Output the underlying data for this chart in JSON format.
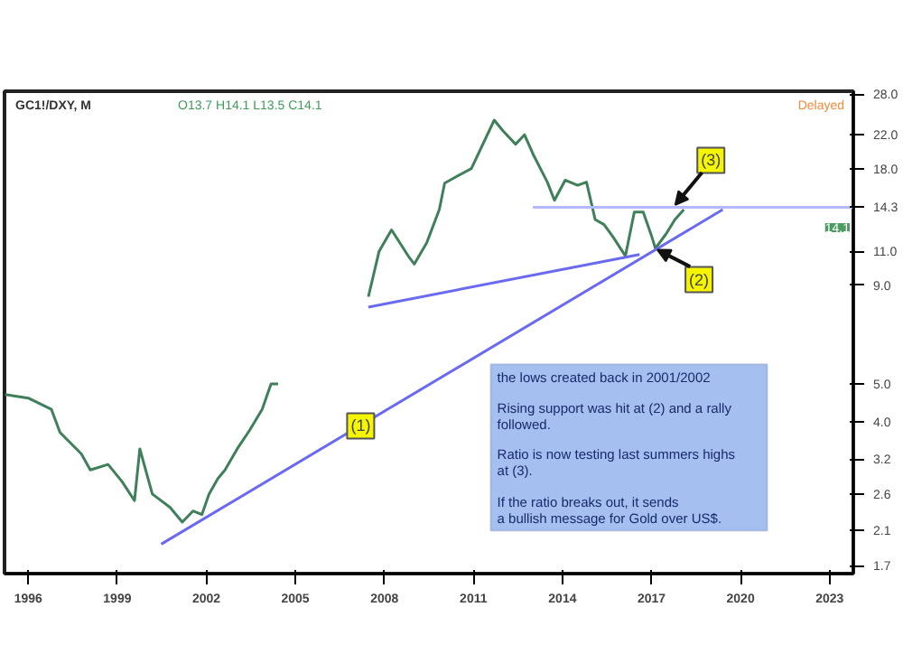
{
  "chart_data": {
    "type": "line",
    "title": "GC1!/DXY, M",
    "subtitle": "O13.7 H14.1 L13.5 C14.1",
    "log": "y",
    "grid": false,
    "line_style": "solid",
    "marker": "none",
    "xlim": [
      1995.2,
      2023.8
    ],
    "ylim": [
      1.62,
      28.5
    ],
    "xticks": [
      1996,
      1999,
      2002,
      2005,
      2008,
      2011,
      2014,
      2017,
      2020,
      2023
    ],
    "yticks": [
      {
        "value": 28,
        "label": "28.0"
      },
      {
        "value": 22,
        "label": "22.0"
      },
      {
        "value": 18,
        "label": "18.0"
      },
      {
        "value": 14.3,
        "label": "14.3"
      },
      {
        "value": 11,
        "label": "11.0"
      },
      {
        "value": 9,
        "label": "9.0"
      },
      {
        "value": 5,
        "label": "5.0"
      },
      {
        "value": 4,
        "label": "4.0"
      },
      {
        "value": 3.2,
        "label": "3.2"
      },
      {
        "value": 2.6,
        "label": "2.6"
      },
      {
        "value": 2.1,
        "label": "2.1"
      },
      {
        "value": 1.7,
        "label": "1.7"
      }
    ],
    "series": [
      {
        "color": "#3f7f5a",
        "x": [
          1995.22,
          1996.0,
          1996.78,
          1997.07,
          1997.79,
          1998.09,
          1998.69,
          1999.16,
          1999.58,
          1999.76,
          2000.18,
          2000.78,
          2001.19,
          2001.55,
          2001.85,
          2002.09,
          2002.39,
          2002.63,
          2003.04,
          2003.46,
          2003.88,
          2004.18,
          2004.42,
          2005.5,
          2007.46,
          2007.82,
          2008.24,
          2008.84,
          2009.01,
          2009.43,
          2009.85,
          2010.03,
          2010.33,
          2010.93,
          2011.7,
          2012.0,
          2012.42,
          2012.72,
          2013.01,
          2013.49,
          2013.73,
          2014.09,
          2014.51,
          2014.81,
          2015.1,
          2015.4,
          2015.7,
          2016.12,
          2016.42,
          2016.72,
          2017.01,
          2017.13,
          2017.49,
          2017.79,
          2018.09
        ],
        "values": [
          4.7,
          4.6,
          4.3,
          3.75,
          3.3,
          3.0,
          3.1,
          2.8,
          2.5,
          3.4,
          2.6,
          2.4,
          2.2,
          2.35,
          2.3,
          2.6,
          2.85,
          3.0,
          3.4,
          3.8,
          4.3,
          5.0,
          5.0,
          null,
          8.4,
          11.0,
          12.5,
          10.6,
          10.2,
          11.6,
          14.1,
          16.5,
          17,
          18,
          24,
          22.5,
          20.8,
          22,
          19.6,
          16.6,
          14.9,
          16.8,
          16.3,
          16.6,
          13.3,
          12.9,
          12.0,
          10.7,
          13.9,
          13.9,
          12.0,
          11.2,
          12.2,
          13.3,
          14.1
        ]
      },
      {
        "type": "line",
        "color": "#6a6af0",
        "x": [
          2000.48,
          2019.4
        ],
        "values": [
          1.93,
          14.1
        ]
      },
      {
        "type": "line",
        "color": "#6a6af0",
        "x": [
          2007.46,
          2016.6
        ],
        "values": [
          7.9,
          10.8
        ]
      },
      {
        "type": "line",
        "color": "#b4b8ff",
        "x": [
          2013.0,
          2023.8
        ],
        "values": [
          14.3,
          14.3
        ]
      }
    ],
    "annotations": [
      "Delayed",
      "the lows created back in 2001/2002",
      "Rising support was hit at (2) and a rally\nfollowed.",
      "Ratio is now testing last summers highs\nat (3).",
      "If the ratio breaks out, it sends\na bullish message for Gold over US$.",
      {
        "text": "(1)",
        "x": 2007.2,
        "y": 3.9
      },
      {
        "text": "(2)",
        "x": 2018.6,
        "y": 9.3
      },
      {
        "text": "(3)",
        "x": 2019.0,
        "y": 18.9
      },
      {
        "text": "14.1",
        "x": 2023.8,
        "y": 14.1
      }
    ]
  }
}
